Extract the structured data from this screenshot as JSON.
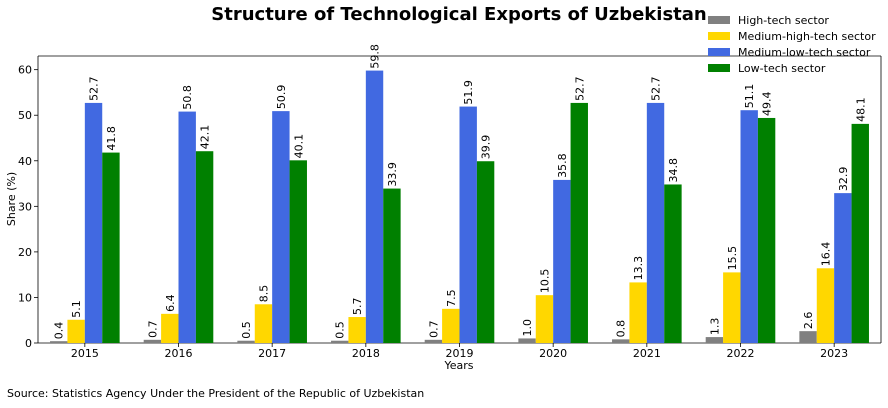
{
  "chart_data": {
    "type": "bar",
    "title": "Structure of Technological Exports of Uzbekistan",
    "xlabel": "Years",
    "ylabel": "Share (%)",
    "ylim": [
      0,
      63
    ],
    "yticks": [
      0,
      10,
      20,
      30,
      40,
      50,
      60
    ],
    "grid": false,
    "legend_position": "top-right",
    "categories": [
      "2015",
      "2016",
      "2017",
      "2018",
      "2019",
      "2020",
      "2021",
      "2022",
      "2023"
    ],
    "series": [
      {
        "name": "High-tech sector",
        "color": "#808080",
        "values": [
          0.4,
          0.7,
          0.5,
          0.5,
          0.7,
          1.0,
          0.8,
          1.3,
          2.6
        ]
      },
      {
        "name": "Medium-high-tech sector",
        "color": "#FFD700",
        "values": [
          5.1,
          6.4,
          8.5,
          5.7,
          7.5,
          10.5,
          13.3,
          15.5,
          16.4
        ]
      },
      {
        "name": "Medium-low-tech sector",
        "color": "#4169E1",
        "values": [
          52.7,
          50.8,
          50.9,
          59.8,
          51.9,
          35.8,
          52.7,
          51.1,
          32.9
        ]
      },
      {
        "name": "Low-tech sector",
        "color": "#008000",
        "values": [
          41.8,
          42.1,
          40.1,
          33.9,
          39.9,
          52.7,
          34.8,
          49.4,
          48.1
        ]
      }
    ]
  },
  "source": "Source: Statistics Agency Under the President of the Republic of Uzbekistan"
}
